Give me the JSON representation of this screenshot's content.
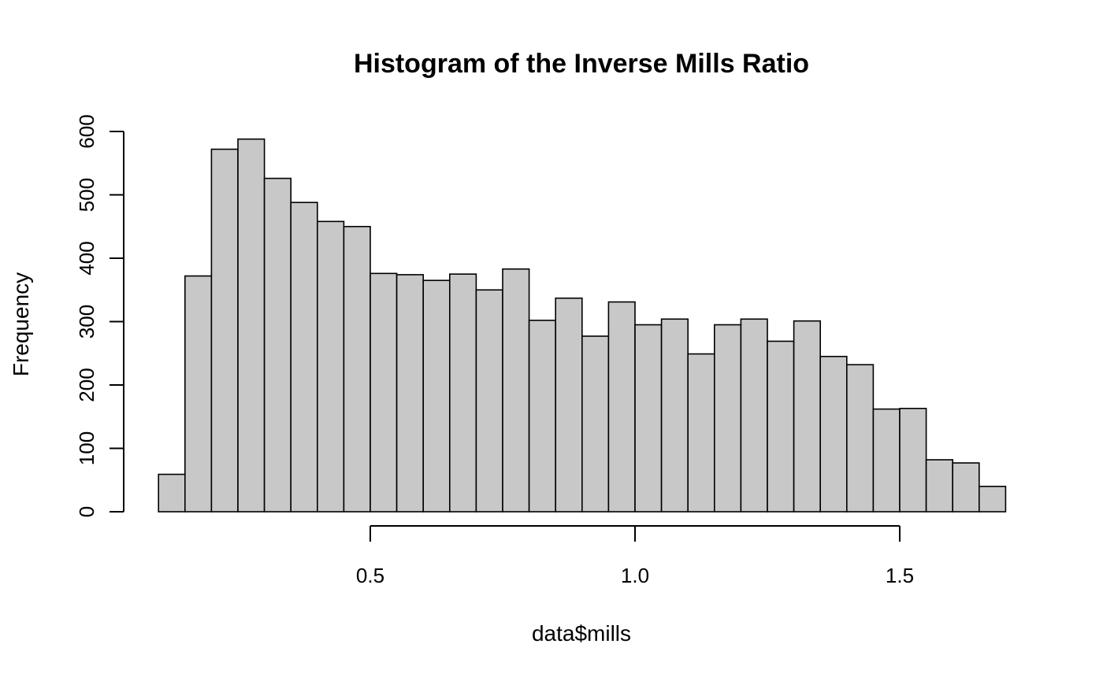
{
  "chart_data": {
    "type": "bar",
    "title": "Histogram of the Inverse Mills Ratio",
    "xlabel": "data$mills",
    "ylabel": "Frequency",
    "bin_width": 0.05,
    "x": [
      0.1,
      0.15,
      0.2,
      0.25,
      0.3,
      0.35,
      0.4,
      0.45,
      0.5,
      0.55,
      0.6,
      0.65,
      0.7,
      0.75,
      0.8,
      0.85,
      0.9,
      0.95,
      1.0,
      1.05,
      1.1,
      1.15,
      1.2,
      1.25,
      1.3,
      1.35,
      1.4,
      1.45,
      1.5,
      1.55,
      1.6,
      1.65
    ],
    "values": [
      59,
      372,
      572,
      588,
      526,
      488,
      458,
      450,
      376,
      374,
      365,
      375,
      350,
      383,
      302,
      337,
      277,
      331,
      295,
      304,
      249,
      295,
      304,
      269,
      301,
      245,
      232,
      162,
      163,
      82,
      77,
      40
    ],
    "x_ticks": [
      {
        "value": 0.5,
        "label": "0.5"
      },
      {
        "value": 1.0,
        "label": "1.0"
      },
      {
        "value": 1.5,
        "label": "1.5"
      }
    ],
    "y_ticks": [
      {
        "value": 0,
        "label": "0"
      },
      {
        "value": 100,
        "label": "100"
      },
      {
        "value": 200,
        "label": "200"
      },
      {
        "value": 300,
        "label": "300"
      },
      {
        "value": 400,
        "label": "400"
      },
      {
        "value": 500,
        "label": "500"
      },
      {
        "value": 600,
        "label": "600"
      }
    ],
    "grid": false,
    "colors": {
      "bar_fill": "#c8c8c8",
      "bar_stroke": "#000000"
    }
  }
}
